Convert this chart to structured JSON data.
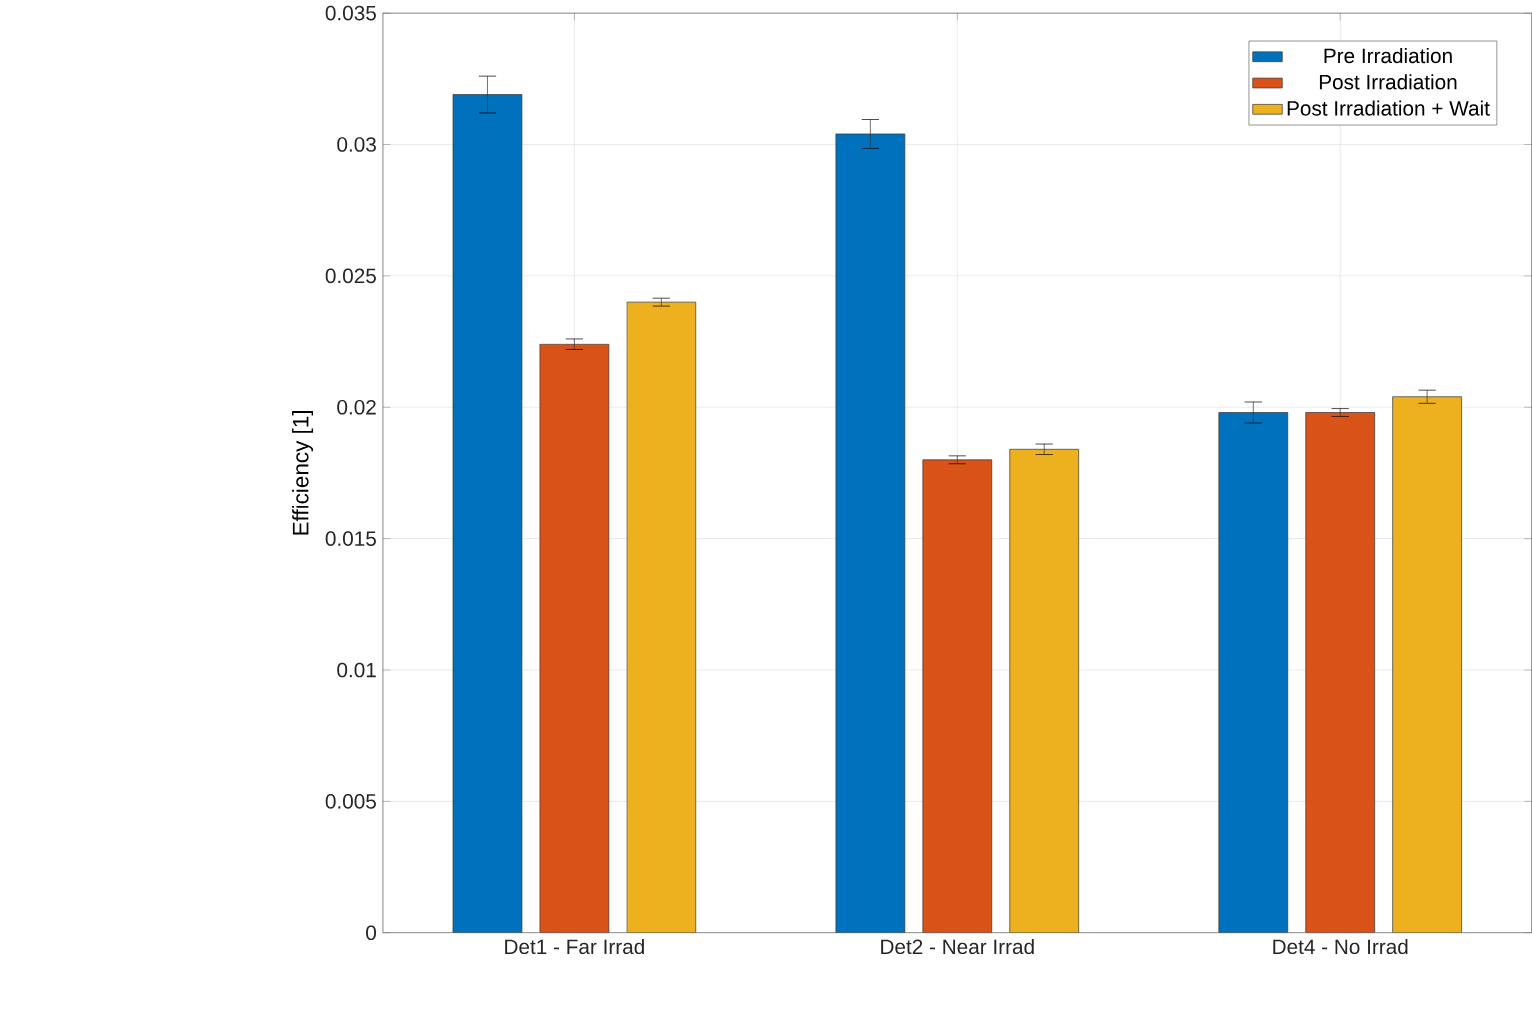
{
  "chart_data": {
    "type": "bar",
    "ylabel": "Efficiency [1]",
    "categories": [
      "Det1 - Far Irrad",
      "Det2 - Near Irrad",
      "Det4 - No Irrad"
    ],
    "series": [
      {
        "name": "Pre Irradiation",
        "color": "#0072bd",
        "values": [
          0.0319,
          0.0304,
          0.0198
        ],
        "errors": [
          0.0007,
          0.00055,
          0.0004
        ]
      },
      {
        "name": "Post Irradiation",
        "color": "#d95319",
        "values": [
          0.0224,
          0.018,
          0.0198
        ],
        "errors": [
          0.0002,
          0.00015,
          0.00015
        ]
      },
      {
        "name": "Post Irradiation + Wait",
        "color": "#edb120",
        "values": [
          0.024,
          0.0184,
          0.0204
        ],
        "errors": [
          0.00015,
          0.0002,
          0.00025
        ]
      }
    ],
    "ylim": [
      0,
      0.035
    ],
    "yticks": [
      0,
      0.005,
      0.01,
      0.015,
      0.02,
      0.025,
      0.03,
      0.035
    ],
    "grid": true,
    "legend": "top right"
  }
}
